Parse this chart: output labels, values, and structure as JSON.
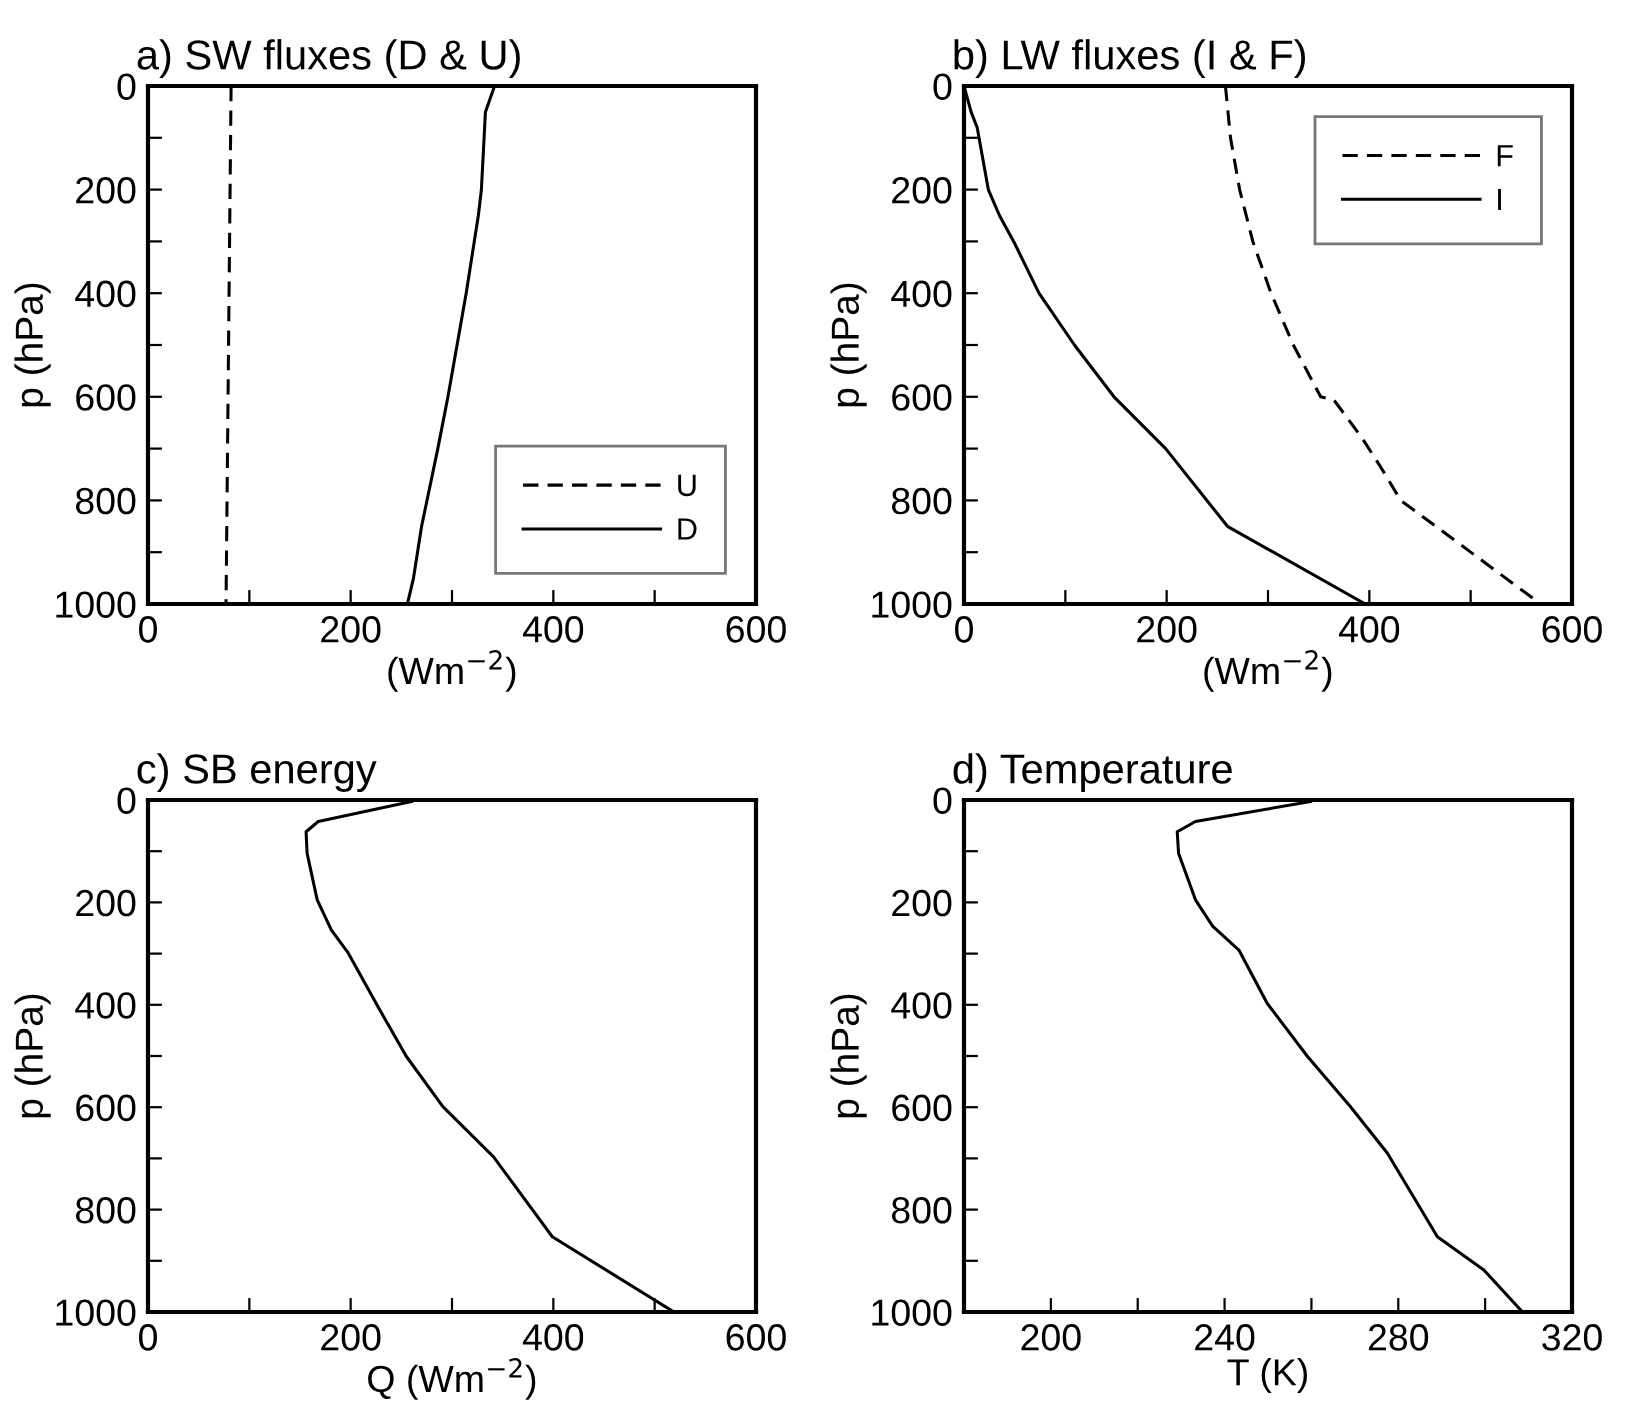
{
  "chart_data": [
    {
      "type": "line",
      "title": "a) SW fluxes (D & U)",
      "xlabel": "(Wm$^{−2}$)",
      "ylabel": "p (hPa)",
      "xlim": [
        0,
        600
      ],
      "ylim": [
        1000,
        0
      ],
      "xticks": [
        0,
        {
          "value": 100,
          "label": null
        },
        200,
        {
          "value": 300,
          "label": null
        },
        400,
        {
          "value": 500,
          "label": null
        },
        600
      ],
      "yticks": [
        0,
        {
          "value": 100,
          "label": null
        },
        200,
        {
          "value": 300,
          "label": null
        },
        400,
        {
          "value": 500,
          "label": null
        },
        600,
        {
          "value": 700,
          "label": null
        },
        800,
        {
          "value": 900,
          "label": null
        },
        1000
      ],
      "legend": "bottom right",
      "grid": false,
      "series": [
        {
          "name": "U",
          "color": "#000000",
          "line_style": "dashed",
          "x": [
            82,
            77
          ],
          "values": [
            0,
            1000
          ]
        },
        {
          "name": "D",
          "color": "#000000",
          "line_style": "solid",
          "x": [
            342,
            333,
            329,
            326,
            314,
            296,
            286,
            270,
            262,
            256
          ],
          "values": [
            0,
            50,
            200,
            250,
            400,
            600,
            700,
            850,
            950,
            1000
          ]
        }
      ]
    },
    {
      "type": "line",
      "title": "b) LW fluxes (I & F)",
      "xlabel": "(Wm$^{−2}$)",
      "ylabel": "p (hPa)",
      "xlim": [
        0,
        600
      ],
      "ylim": [
        1000,
        0
      ],
      "xticks": [
        0,
        {
          "value": 100,
          "label": null
        },
        200,
        {
          "value": 300,
          "label": null
        },
        400,
        {
          "value": 500,
          "label": null
        },
        600
      ],
      "yticks": [
        0,
        {
          "value": 100,
          "label": null
        },
        200,
        {
          "value": 300,
          "label": null
        },
        400,
        {
          "value": 500,
          "label": null
        },
        600,
        {
          "value": 700,
          "label": null
        },
        800,
        {
          "value": 900,
          "label": null
        },
        1000
      ],
      "legend": "top right",
      "grid": false,
      "series": [
        {
          "name": "F",
          "color": "#000000",
          "line_style": "dashed",
          "x": [
            258,
            263,
            272,
            285,
            303,
            325,
            352,
            365,
            393,
            411,
            431,
            467,
            569
          ],
          "values": [
            0,
            100,
            200,
            300,
            400,
            500,
            600,
            606,
            680,
            735,
            800,
            852,
            1000
          ]
        },
        {
          "name": "I",
          "color": "#000000",
          "line_style": "solid",
          "x": [
            0,
            7,
            13,
            24,
            35,
            49,
            74,
            109,
            148,
            199,
            260,
            396
          ],
          "values": [
            0,
            50,
            80,
            200,
            250,
            300,
            400,
            500,
            600,
            700,
            850,
            1000
          ]
        }
      ]
    },
    {
      "type": "line",
      "title": "c) SB energy",
      "xlabel": "Q (Wm$^{−2}$)",
      "ylabel": "p (hPa)",
      "xlim": [
        0,
        600
      ],
      "ylim": [
        1000,
        0
      ],
      "xticks": [
        0,
        {
          "value": 100,
          "label": null
        },
        200,
        {
          "value": 300,
          "label": null
        },
        400,
        {
          "value": 500,
          "label": null
        },
        600
      ],
      "yticks": [
        0,
        {
          "value": 100,
          "label": null
        },
        200,
        {
          "value": 300,
          "label": null
        },
        400,
        {
          "value": 500,
          "label": null
        },
        600,
        {
          "value": 700,
          "label": null
        },
        800,
        {
          "value": 900,
          "label": null
        },
        1000
      ],
      "grid": false,
      "series": [
        {
          "color": "#000000",
          "line_style": "solid",
          "x": [
            260,
            168,
            156,
            157,
            167,
            181,
            197,
            227,
            255,
            291,
            341,
            399,
            519
          ],
          "values": [
            3,
            42,
            62,
            104,
            195,
            254,
            297,
            404,
            501,
            599,
            697,
            853,
            1000
          ]
        }
      ]
    },
    {
      "type": "line",
      "title": "d) Temperature",
      "xlabel": "T (K)",
      "ylabel": "p (hPa)",
      "xlim": [
        180,
        320
      ],
      "ylim": [
        1000,
        0
      ],
      "xticks": [
        200,
        {
          "value": 220,
          "label": null
        },
        240,
        {
          "value": 260,
          "label": null
        },
        280,
        {
          "value": 300,
          "label": null
        },
        320
      ],
      "yticks": [
        0,
        {
          "value": 100,
          "label": null
        },
        200,
        {
          "value": 300,
          "label": null
        },
        400,
        {
          "value": 500,
          "label": null
        },
        600,
        {
          "value": 700,
          "label": null
        },
        800,
        {
          "value": 900,
          "label": null
        },
        1000
      ],
      "grid": false,
      "series": [
        {
          "color": "#000000",
          "line_style": "solid",
          "x": [
            259.8,
            233.3,
            229.1,
            229.4,
            233.3,
            237.3,
            243.3,
            249.8,
            259.1,
            269.0,
            277.5,
            289.0,
            299.7,
            308.6
          ],
          "values": [
            3,
            42,
            62,
            104,
            195,
            247,
            293,
            397,
            501,
            599,
            690,
            853,
            918,
            1000
          ]
        }
      ]
    }
  ]
}
